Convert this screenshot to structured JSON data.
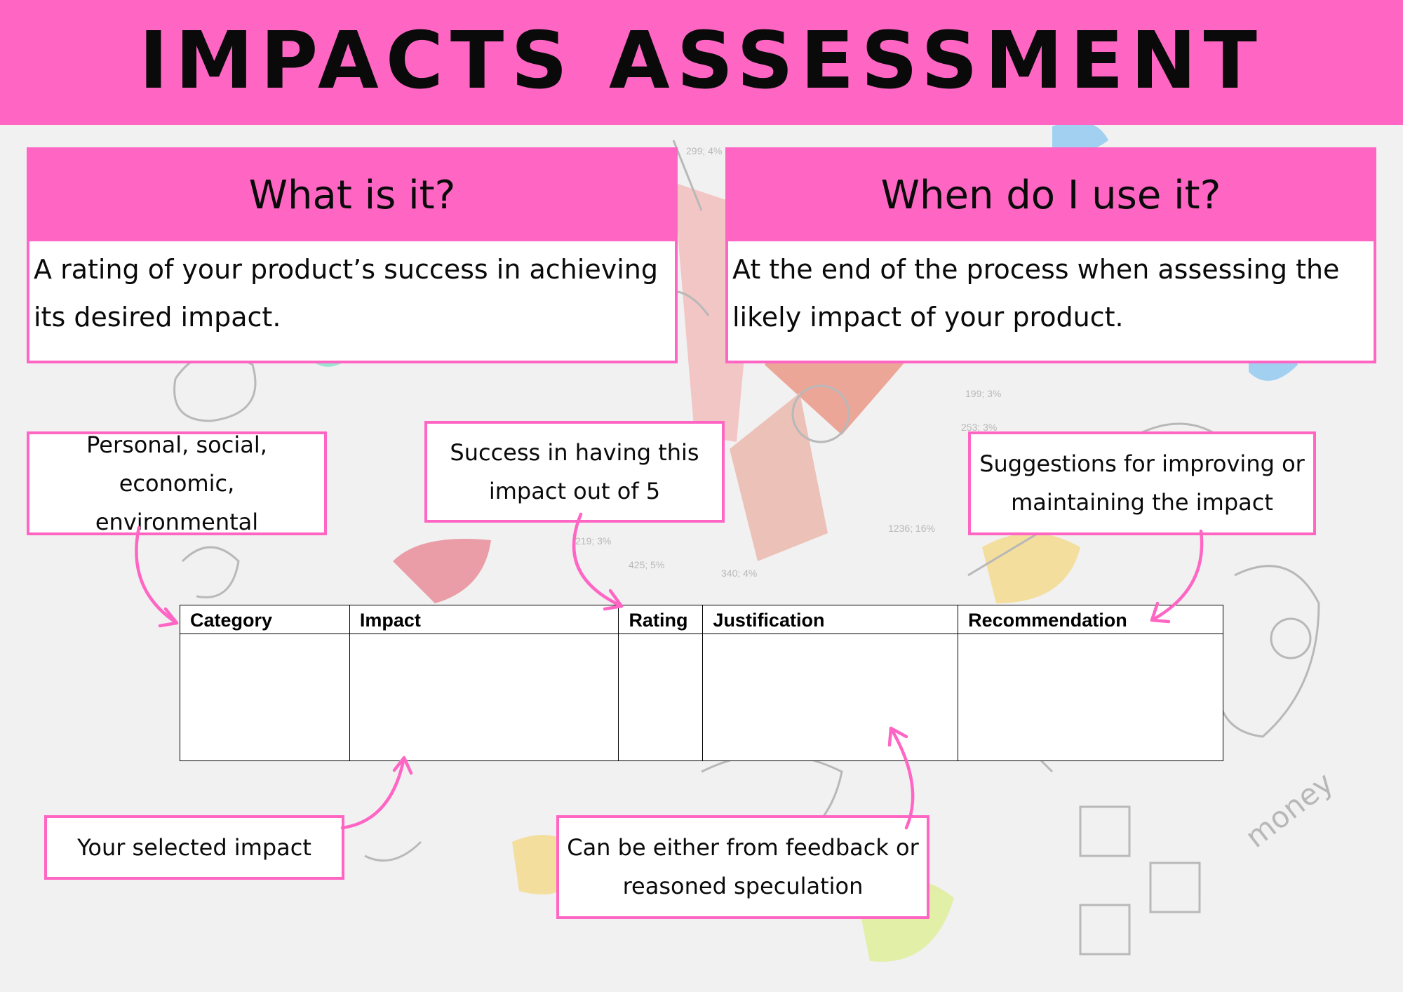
{
  "banner": {
    "title": "IMPACTS ASSESSMENT"
  },
  "what_panel": {
    "heading": "What is it?",
    "line1": "A rating of your product’s success in achieving",
    "line2": "its desired impact."
  },
  "when_panel": {
    "heading": "When do I use it?",
    "line1": "At the end of the process when assessing the",
    "line2": "likely impact of your product."
  },
  "notes": {
    "category": {
      "line1": "Personal, social,",
      "line2": "economic, environmental"
    },
    "rating": {
      "line1": "Success in having this",
      "line2": "impact out of 5"
    },
    "recommendation": {
      "line1": "Suggestions for improving or",
      "line2": "maintaining the impact"
    },
    "impact": {
      "line1": "Your selected impact"
    },
    "justification": {
      "line1": "Can be either from feedback or",
      "line2": "reasoned speculation"
    }
  },
  "table": {
    "headers": [
      "Category",
      "Impact",
      "Rating",
      "Justification",
      "Recommendation"
    ]
  },
  "background": {
    "labels": [
      "299; 4%",
      "199; 3%",
      "253; 3%",
      "1236; 16%",
      "425; 5%",
      "340; 4%",
      "219; 3%"
    ],
    "handwritten": "money"
  },
  "colors": {
    "accent": "#ff66c4",
    "text": "#0a0a0a",
    "background": "#f1f1f2"
  }
}
